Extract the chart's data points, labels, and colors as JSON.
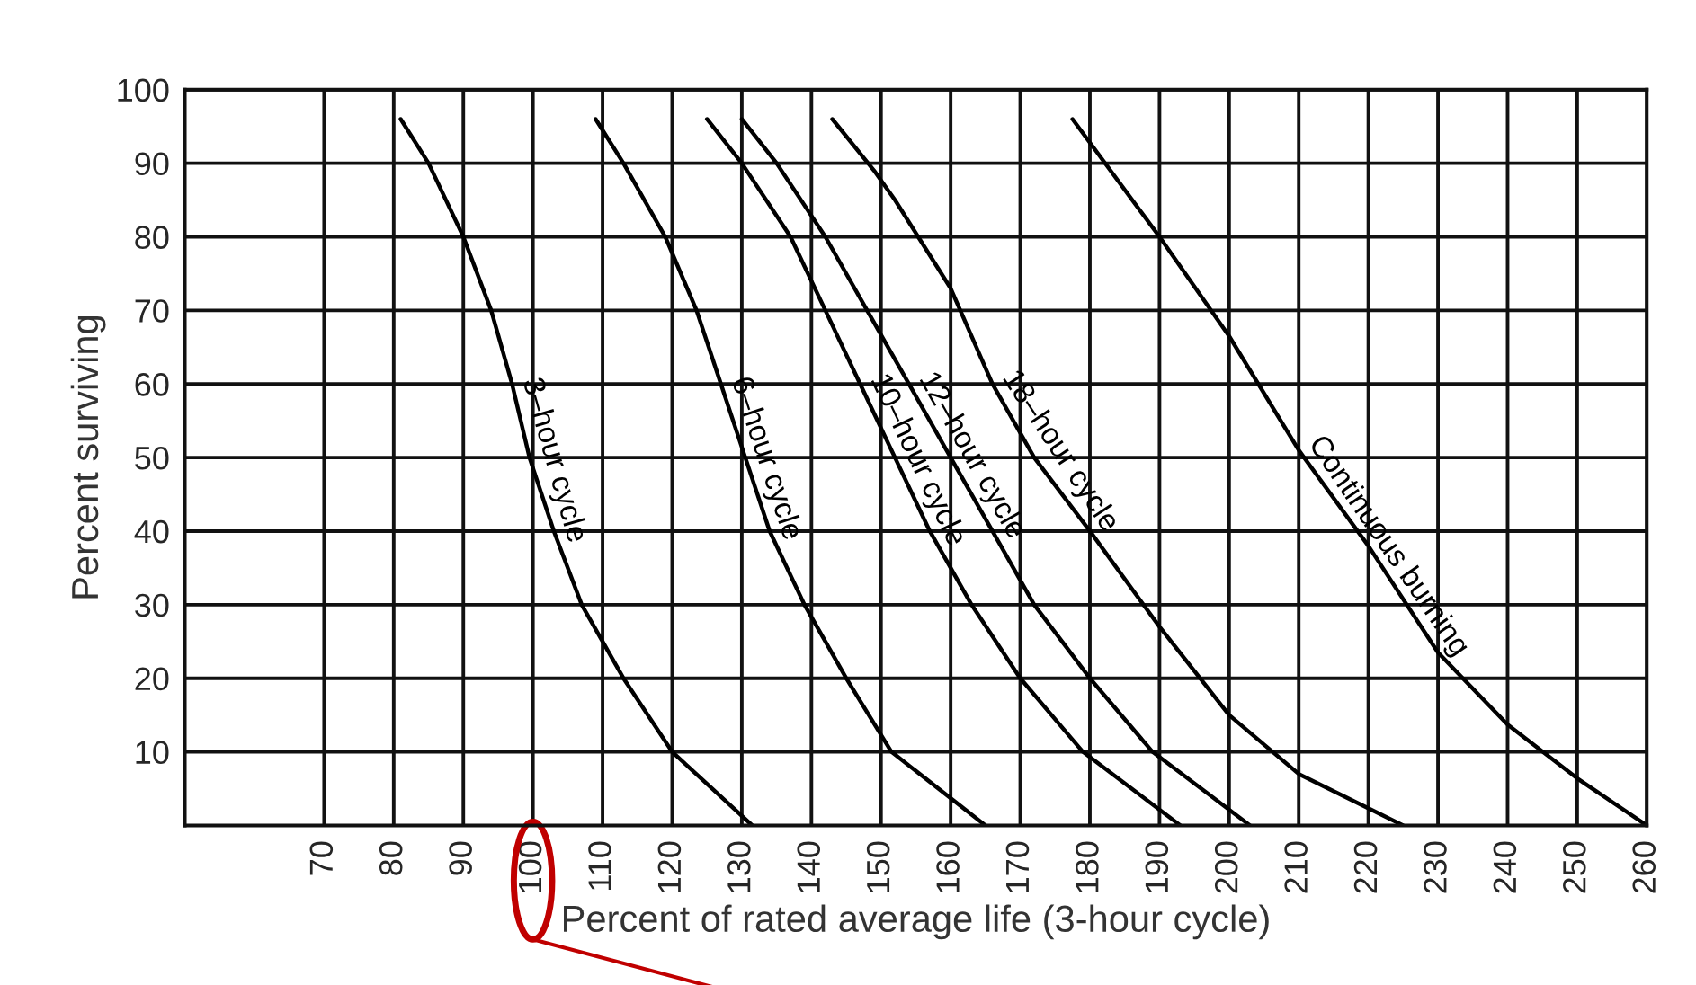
{
  "chart_data": {
    "type": "line",
    "xlabel": "Percent of rated average life (3-hour cycle)",
    "ylabel": "Percent surviving",
    "xlim": [
      50,
      260
    ],
    "xticks": [
      70,
      80,
      90,
      100,
      110,
      120,
      130,
      140,
      150,
      160,
      170,
      180,
      190,
      200,
      210,
      220,
      230,
      240,
      250,
      260
    ],
    "ylim": [
      0,
      100
    ],
    "yticks": [
      10,
      20,
      30,
      40,
      50,
      60,
      70,
      80,
      90,
      100
    ],
    "grid": true,
    "legend": false,
    "marker": "none",
    "line_style": "solid",
    "series": [
      {
        "name": "3–hour cycle",
        "color": "#000000",
        "x": [
          81,
          85,
          90,
          94,
          97,
          99.5,
          103,
          107,
          113,
          120,
          131.5
        ],
        "values": [
          96,
          90,
          80,
          70,
          60,
          50,
          40,
          30,
          20,
          10,
          0
        ]
      },
      {
        "name": "6–hour cycle",
        "color": "#000000",
        "x": [
          109,
          113,
          119,
          123.5,
          127,
          130.5,
          134,
          139,
          145,
          151.5,
          165
        ],
        "values": [
          96,
          90,
          80,
          70,
          60,
          50,
          40,
          30,
          20,
          10,
          0
        ]
      },
      {
        "name": "10–hour cycle",
        "color": "#000000",
        "x": [
          125,
          130,
          137,
          142,
          147,
          152,
          157,
          163,
          170,
          179,
          193
        ],
        "values": [
          96,
          90,
          80,
          70,
          60,
          50,
          40,
          30,
          20,
          10,
          0
        ]
      },
      {
        "name": "12–hour cycle",
        "color": "#000000",
        "x": [
          130,
          135,
          142,
          148,
          154,
          160,
          166,
          172,
          180,
          189,
          203
        ],
        "values": [
          96,
          90,
          80,
          70,
          60,
          50,
          40,
          30,
          20,
          10,
          0
        ]
      },
      {
        "name": "18–hour cycle",
        "color": "#000000",
        "x": [
          143,
          149,
          152,
          160,
          166,
          172,
          180,
          190,
          200,
          210,
          225
        ],
        "values": [
          96,
          89,
          85,
          73,
          60,
          50,
          40,
          27,
          15,
          7,
          0
        ]
      },
      {
        "name": "Continuous burning",
        "color": "#000000",
        "x": [
          177.5,
          190,
          200,
          210,
          220,
          230,
          240,
          250,
          260
        ],
        "values": [
          96,
          80,
          66.5,
          51,
          38,
          23.5,
          13.7,
          6.4,
          0
        ]
      }
    ]
  }
}
